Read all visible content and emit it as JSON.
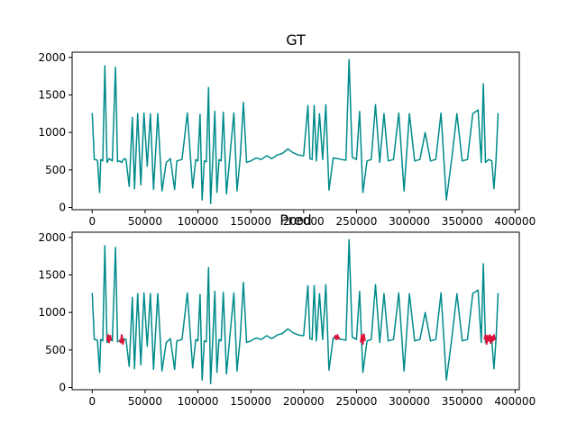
{
  "chart_data": [
    {
      "type": "line",
      "title": "GT",
      "xlim": [
        -19000,
        404000
      ],
      "ylim": [
        -30,
        2070
      ],
      "xticks": [
        0,
        50000,
        100000,
        150000,
        200000,
        250000,
        300000,
        350000,
        400000
      ],
      "xtick_labels": [
        "0",
        "50000",
        "100000",
        "150000",
        "200000",
        "250000",
        "300000",
        "350000",
        "400000"
      ],
      "yticks": [
        0,
        500,
        1000,
        1500,
        2000
      ],
      "ytick_labels": [
        "0",
        "500",
        "1000",
        "1500",
        "2000"
      ],
      "grid": false,
      "series": [
        {
          "color": "#008b8b",
          "x": [
            0,
            2000,
            5000,
            7000,
            8000,
            10000,
            12000,
            14000,
            16000,
            19000,
            22000,
            24000,
            26000,
            28000,
            30000,
            32000,
            35000,
            38000,
            40000,
            43000,
            46000,
            49000,
            52000,
            55000,
            58000,
            62000,
            66000,
            70000,
            74000,
            78000,
            80000,
            85000,
            90000,
            95000,
            98000,
            100000,
            102000,
            104000,
            106000,
            108000,
            110000,
            112000,
            114000,
            116000,
            118000,
            120000,
            122000,
            124000,
            127000,
            130000,
            134000,
            137000,
            140000,
            143000,
            146000,
            150000,
            155000,
            160000,
            165000,
            170000,
            175000,
            180000,
            185000,
            190000,
            195000,
            200000,
            204000,
            206000,
            208000,
            210000,
            212000,
            215000,
            218000,
            221000,
            224000,
            228000,
            232000,
            236000,
            240000,
            243000,
            246000,
            250000,
            253000,
            256000,
            260000,
            264000,
            268000,
            272000,
            276000,
            280000,
            285000,
            290000,
            295000,
            300000,
            305000,
            310000,
            315000,
            320000,
            325000,
            330000,
            335000,
            340000,
            345000,
            350000,
            355000,
            360000,
            365000,
            368000,
            370000,
            372000,
            375000,
            378000,
            380000,
            382000,
            384000
          ],
          "y": [
            1260,
            640,
            630,
            200,
            640,
            620,
            1890,
            600,
            650,
            620,
            1870,
            610,
            620,
            600,
            650,
            640,
            280,
            1200,
            250,
            1250,
            300,
            1260,
            550,
            1250,
            240,
            1250,
            220,
            600,
            650,
            240,
            620,
            640,
            1260,
            260,
            640,
            620,
            1240,
            100,
            620,
            610,
            1600,
            50,
            640,
            1280,
            200,
            640,
            620,
            1270,
            180,
            640,
            1260,
            220,
            650,
            1400,
            600,
            620,
            660,
            640,
            690,
            650,
            700,
            720,
            780,
            730,
            700,
            690,
            1360,
            650,
            640,
            1360,
            620,
            1250,
            640,
            1370,
            230,
            660,
            650,
            640,
            630,
            1970,
            670,
            640,
            1280,
            200,
            620,
            640,
            1370,
            600,
            1250,
            620,
            640,
            1260,
            220,
            1250,
            620,
            640,
            1000,
            620,
            640,
            1260,
            100,
            640,
            1250,
            620,
            640,
            1250,
            1300,
            600,
            1650,
            600,
            640,
            620,
            250,
            640,
            1260
          ]
        }
      ]
    },
    {
      "type": "line",
      "title": "Pred",
      "xlim": [
        -19000,
        404000
      ],
      "ylim": [
        -30,
        2070
      ],
      "xticks": [
        0,
        50000,
        100000,
        150000,
        200000,
        250000,
        300000,
        350000,
        400000
      ],
      "xtick_labels": [
        "0",
        "50000",
        "100000",
        "150000",
        "200000",
        "250000",
        "300000",
        "350000",
        "400000"
      ],
      "yticks": [
        0,
        500,
        1000,
        1500,
        2000
      ],
      "ytick_labels": [
        "0",
        "500",
        "1000",
        "1500",
        "2000"
      ],
      "grid": false,
      "series": [
        {
          "color": "#008b8b",
          "x": [
            0,
            2000,
            5000,
            7000,
            8000,
            10000,
            12000,
            14000,
            16000,
            19000,
            22000,
            24000,
            26000,
            28000,
            30000,
            32000,
            35000,
            38000,
            40000,
            43000,
            46000,
            49000,
            52000,
            55000,
            58000,
            62000,
            66000,
            70000,
            74000,
            78000,
            80000,
            85000,
            90000,
            95000,
            98000,
            100000,
            102000,
            104000,
            106000,
            108000,
            110000,
            112000,
            114000,
            116000,
            118000,
            120000,
            122000,
            124000,
            127000,
            130000,
            134000,
            137000,
            140000,
            143000,
            146000,
            150000,
            155000,
            160000,
            165000,
            170000,
            175000,
            180000,
            185000,
            190000,
            195000,
            200000,
            204000,
            206000,
            208000,
            210000,
            212000,
            215000,
            218000,
            221000,
            224000,
            228000,
            232000,
            236000,
            240000,
            243000,
            246000,
            250000,
            253000,
            256000,
            260000,
            264000,
            268000,
            272000,
            276000,
            280000,
            285000,
            290000,
            295000,
            300000,
            305000,
            310000,
            315000,
            320000,
            325000,
            330000,
            335000,
            340000,
            345000,
            350000,
            355000,
            360000,
            365000,
            368000,
            370000,
            372000,
            375000,
            378000,
            380000,
            382000,
            384000
          ],
          "y": [
            1260,
            640,
            630,
            200,
            640,
            620,
            1890,
            600,
            650,
            620,
            1870,
            610,
            620,
            600,
            650,
            640,
            280,
            1200,
            250,
            1250,
            300,
            1260,
            550,
            1250,
            240,
            1250,
            220,
            600,
            650,
            240,
            620,
            640,
            1260,
            260,
            640,
            620,
            1240,
            100,
            620,
            610,
            1600,
            50,
            640,
            1280,
            200,
            640,
            620,
            1270,
            180,
            640,
            1260,
            220,
            650,
            1400,
            600,
            620,
            660,
            640,
            690,
            650,
            700,
            720,
            780,
            730,
            700,
            690,
            1360,
            650,
            640,
            1360,
            620,
            1250,
            640,
            1370,
            230,
            660,
            650,
            640,
            630,
            1970,
            670,
            640,
            1280,
            200,
            620,
            640,
            1370,
            600,
            1250,
            620,
            640,
            1260,
            220,
            1250,
            620,
            640,
            1000,
            620,
            640,
            1260,
            100,
            640,
            1250,
            620,
            640,
            1250,
            1300,
            600,
            1650,
            600,
            640,
            620,
            250,
            640,
            1260
          ]
        },
        {
          "color": "#dc143c",
          "segments": [
            {
              "x": [
                14000,
                15000,
                16000,
                17000,
                18000
              ],
              "y": [
                620,
                700,
                600,
                690,
                630
              ]
            },
            {
              "x": [
                26000,
                27000,
                28000,
                29000,
                30000
              ],
              "y": [
                640,
                600,
                700,
                580,
                640
              ]
            },
            {
              "x": [
                229000,
                230000,
                231000,
                232000,
                233000,
                234000
              ],
              "y": [
                660,
                690,
                640,
                700,
                650,
                670
              ]
            },
            {
              "x": [
                254000,
                255000,
                256000,
                257000,
                258000
              ],
              "y": [
                600,
                700,
                580,
                710,
                620
              ]
            },
            {
              "x": [
                371000,
                372000,
                373000,
                374000,
                375000,
                376000,
                377000,
                378000,
                379000,
                380000,
                381000
              ],
              "y": [
                640,
                700,
                580,
                690,
                620,
                700,
                590,
                680,
                620,
                700,
                630
              ]
            }
          ]
        }
      ]
    }
  ]
}
